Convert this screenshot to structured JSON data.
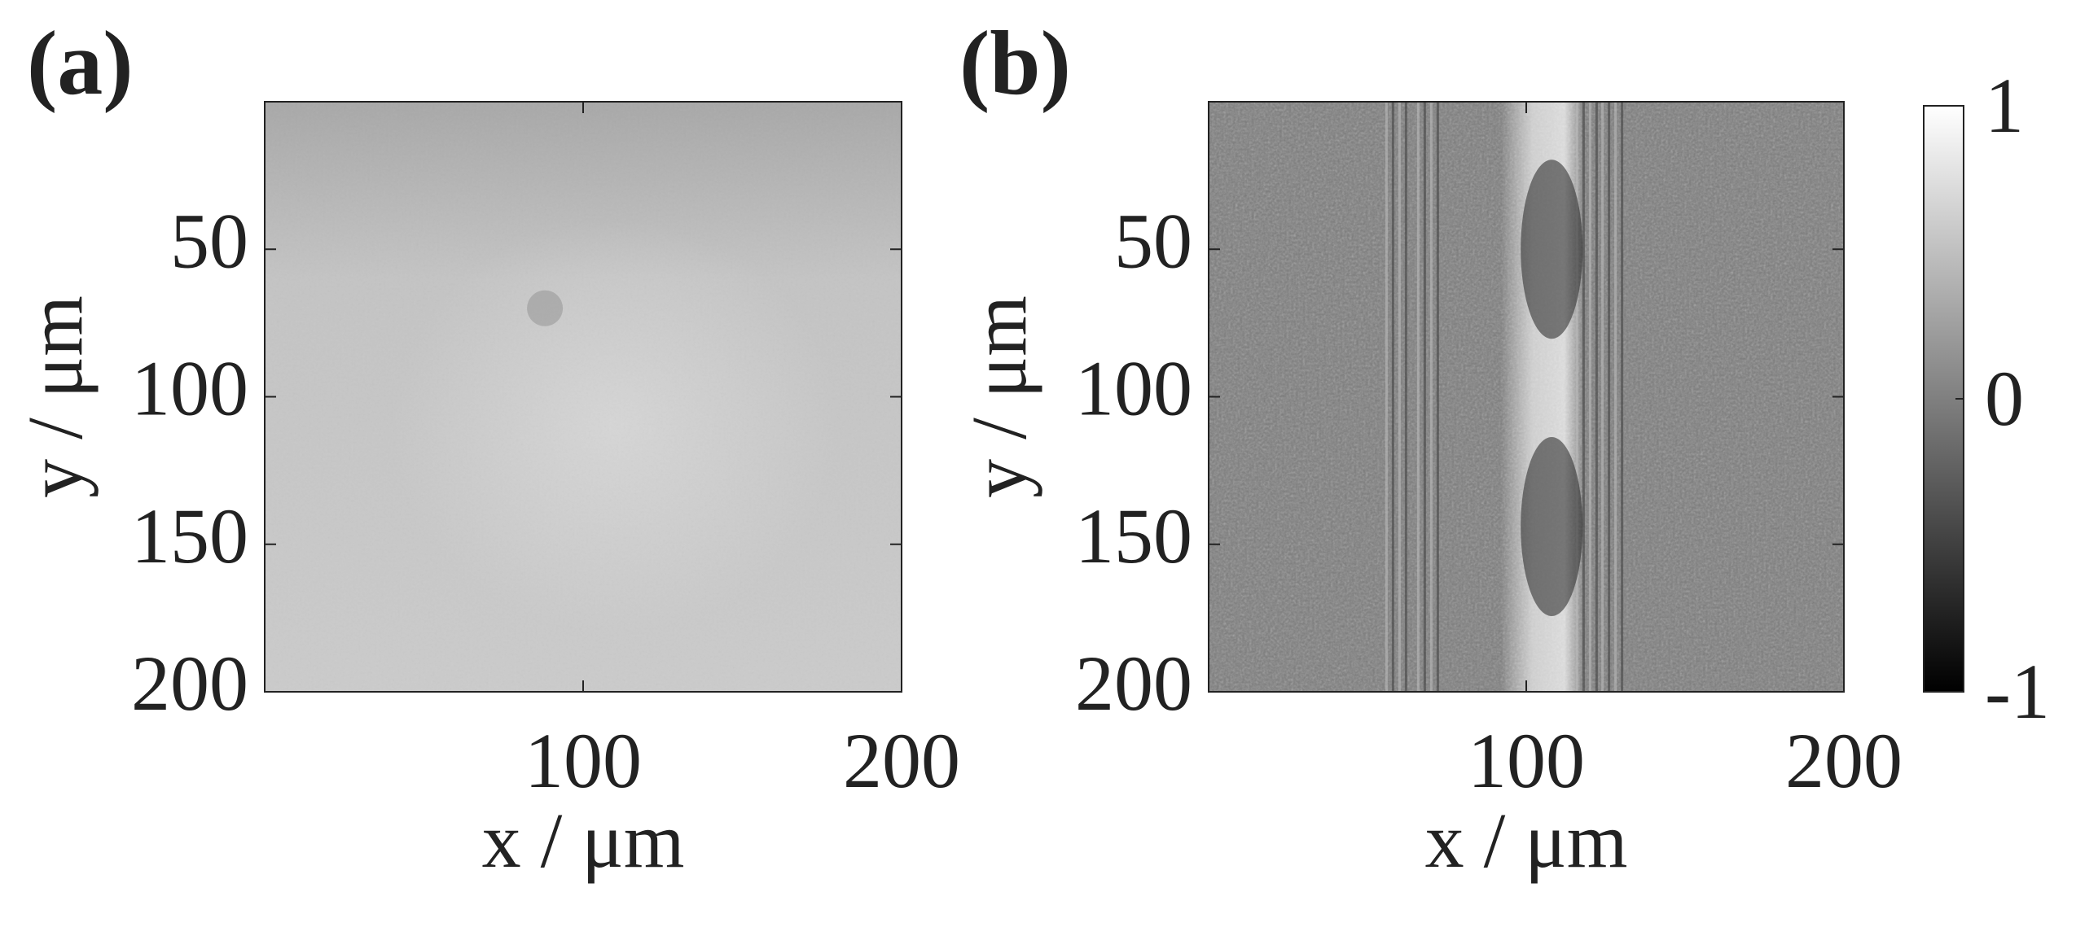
{
  "chart_data": [
    {
      "type": "image",
      "panel_label": "(a)",
      "xlabel": "x / μm",
      "ylabel": "y / μm",
      "xlim": [
        0,
        200
      ],
      "xticks": [
        100,
        200
      ],
      "ylim": [
        0,
        200
      ],
      "y_direction": "reversed",
      "yticks": [
        50,
        100,
        150,
        200
      ]
    },
    {
      "type": "image",
      "panel_label": "(b)",
      "xlabel": "x / μm",
      "ylabel": "y / μm",
      "xlim": [
        0,
        200
      ],
      "xticks": [
        100,
        200
      ],
      "ylim": [
        0,
        200
      ],
      "y_direction": "reversed",
      "yticks": [
        50,
        100,
        150,
        200
      ],
      "colorbar": {
        "lim": [
          -1,
          1
        ],
        "ticks": [
          -1,
          0,
          1
        ]
      }
    }
  ]
}
